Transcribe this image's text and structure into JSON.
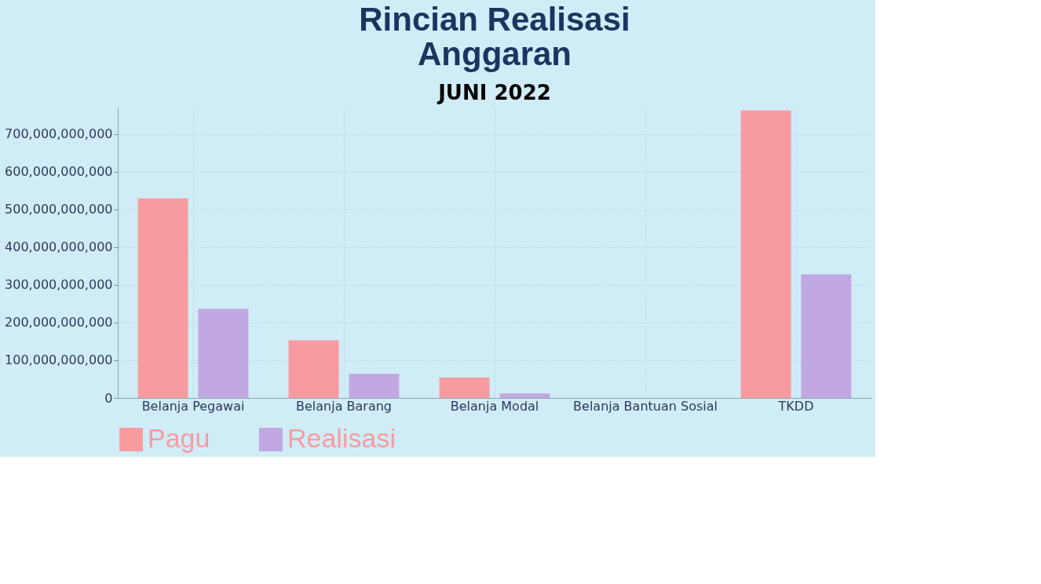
{
  "chart_data": {
    "type": "bar",
    "title": "Rincian Realisasi\nAnggaran",
    "subtitle": "JUNI 2022",
    "categories": [
      "Belanja Pegawai",
      "Belanja Barang",
      "Belanja Modal",
      "Belanja Bantuan Sosial",
      "TKDD"
    ],
    "series": [
      {
        "name": "Pagu",
        "color": "#f89ba0",
        "values": [
          529000000000,
          153000000000,
          54000000000,
          0,
          762000000000
        ]
      },
      {
        "name": "Realisasi",
        "color": "#c1a8e2",
        "values": [
          236000000000,
          64000000000,
          12000000000,
          0,
          328000000000
        ]
      }
    ],
    "ylim": [
      0,
      770000000000
    ],
    "yticks": [
      0,
      {
        "value": 100000000000,
        "label": "100,000,000,000"
      },
      {
        "value": 200000000000,
        "label": "200,000,000,000"
      },
      {
        "value": 300000000000,
        "label": "300,000,000,000"
      },
      {
        "value": 400000000000,
        "label": "400,000,000,000"
      },
      {
        "value": 500000000000,
        "label": "500,000,000,000"
      },
      {
        "value": 600000000000,
        "label": "600,000,000,000"
      },
      {
        "value": 700000000000,
        "label": "700,000,000,000"
      }
    ],
    "grid": true,
    "legend": "bottom"
  }
}
